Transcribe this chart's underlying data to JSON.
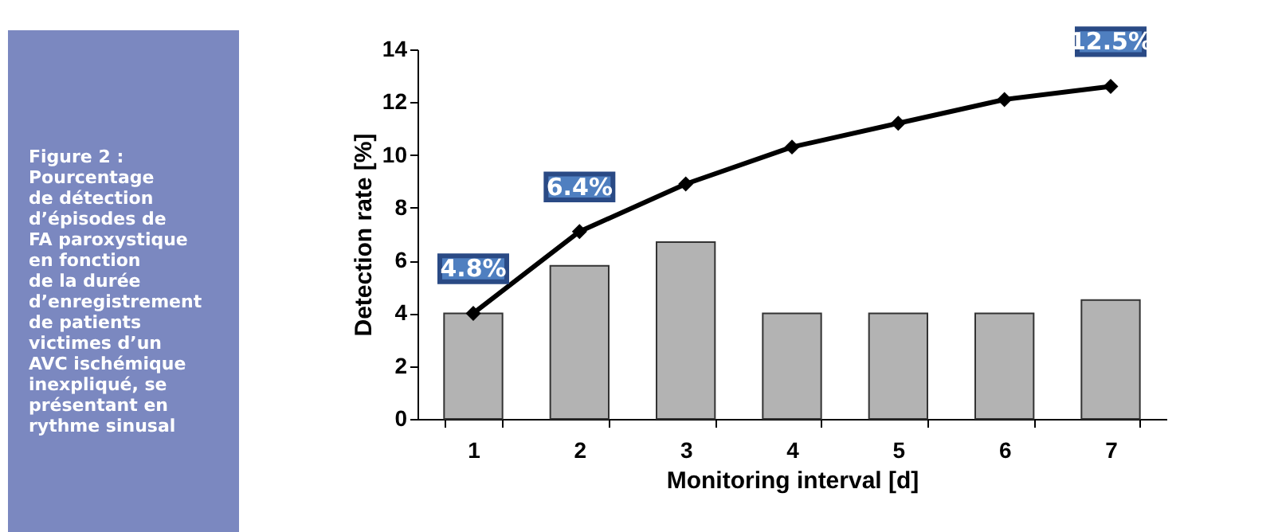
{
  "chart_data": {
    "type": "bar",
    "categories": [
      "1",
      "2",
      "3",
      "4",
      "5",
      "6",
      "7"
    ],
    "series": [
      {
        "color": "#b3b3b3",
        "values": [
          4.0,
          5.8,
          6.7,
          4.0,
          4.0,
          4.0,
          4.5
        ]
      },
      {
        "type": "line",
        "color": "#000000",
        "values": [
          4.0,
          7.1,
          8.9,
          10.3,
          11.2,
          12.1,
          12.6
        ]
      }
    ],
    "marker": "diamond",
    "line_style": "solid",
    "xlabel": "Monitoring interval [d]",
    "ylabel": "Detection rate [%]",
    "ylim": [
      0,
      14
    ],
    "yticks": [
      0,
      2,
      4,
      6,
      8,
      10,
      12,
      14
    ],
    "annotations": [
      "Figure 2 :\nPourcentage\nde détection\nd’épisodes de\nFA paroxystique\nen fonction\nde la durée\nd’enregistrement\nde patients\nvictimes d’un\nAVC ischémique\ninexpliqué, se\nprésentant en\nrythme sinusal",
      {
        "text": "4.8%",
        "x": "1",
        "y": 4.0
      },
      {
        "text": "6.4%",
        "x": "2",
        "y": 7.1
      },
      {
        "text": "12.5%",
        "x": "7",
        "y": 12.6
      }
    ]
  }
}
